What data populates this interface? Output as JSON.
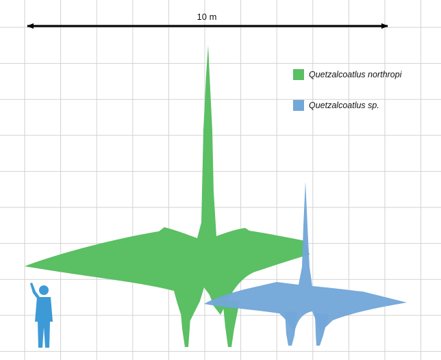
{
  "scale_bar": {
    "label": "10 m"
  },
  "legend": [
    {
      "name": "Quetzalcoatlus northropi",
      "color": "#5bbf64"
    },
    {
      "name": "Quetzalcoatlus sp.",
      "color": "#72a7d8"
    }
  ],
  "silhouettes": {
    "northropi_color": "#5bbf64",
    "sp_color": "#72a7d8",
    "human_color": "#3d9ad6"
  },
  "grid": {
    "shown": true,
    "line_color": "#d2d2d2"
  }
}
